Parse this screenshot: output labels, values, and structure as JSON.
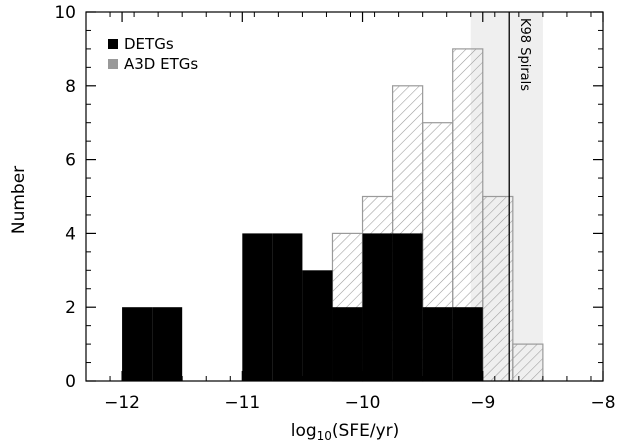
{
  "chart_data": {
    "type": "bar",
    "xlabel": "log10(SFE/yr)",
    "xlabel_parts": {
      "base": "log",
      "sub": "10",
      "rest": "(SFE/yr)"
    },
    "ylabel": "Number",
    "xlim": [
      -12.3,
      -8.0
    ],
    "ylim": [
      0,
      10
    ],
    "x_ticks": [
      -12,
      -11,
      -10,
      -9,
      -8
    ],
    "x_tick_labels": [
      "−12",
      "−11",
      "−10",
      "−9",
      "−8"
    ],
    "y_ticks": [
      0,
      2,
      4,
      6,
      8,
      10
    ],
    "y_tick_labels": [
      "0",
      "2",
      "4",
      "6",
      "8",
      "10"
    ],
    "bin_width": 0.25,
    "series": [
      {
        "name": "DETGs",
        "style": "solid",
        "color": "#000000",
        "bin_edges": [
          -12.0,
          -11.75,
          -11.5,
          -11.25,
          -11.0,
          -10.75,
          -10.5,
          -10.25,
          -10.0,
          -9.75,
          -9.5,
          -9.25,
          -9.0
        ],
        "counts": [
          2,
          2,
          0,
          0,
          4,
          4,
          3,
          2,
          4,
          4,
          2,
          2
        ]
      },
      {
        "name": "A3D ETGs",
        "style": "hatched",
        "color": "#999999",
        "bin_edges": [
          -10.25,
          -10.0,
          -9.75,
          -9.5,
          -9.25,
          -9.0,
          -8.75,
          -8.5
        ],
        "counts": [
          4,
          5,
          8,
          7,
          9,
          5,
          1
        ]
      }
    ],
    "reference_line": {
      "label": "K98 Spirals",
      "x": -8.78,
      "band": [
        -9.1,
        -8.5
      ],
      "band_color": "#efefef"
    },
    "legend": {
      "position": "top-left"
    },
    "grid": false
  }
}
